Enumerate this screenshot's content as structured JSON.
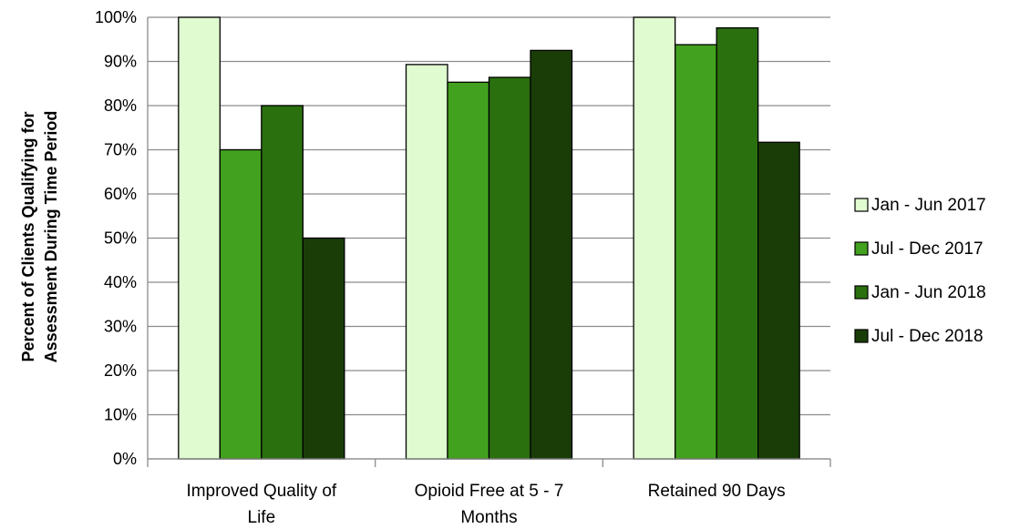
{
  "chart_data": {
    "type": "bar",
    "categories": [
      "Improved Quality of Life",
      "Opioid Free at 5 - 7 Months",
      "Retained 90 Days"
    ],
    "category_lines": [
      [
        "Improved Quality of",
        "Life"
      ],
      [
        "Opioid Free at 5 - 7",
        "Months"
      ],
      [
        "Retained 90 Days"
      ]
    ],
    "series": [
      {
        "name": "Jan - Jun 2017",
        "values": [
          100,
          89.3,
          100
        ]
      },
      {
        "name": "Jul - Dec 2017",
        "values": [
          70,
          85.3,
          93.8
        ]
      },
      {
        "name": "Jan - Jun 2018",
        "values": [
          80,
          86.4,
          97.6
        ]
      },
      {
        "name": "Jul - Dec 2018",
        "values": [
          50,
          92.5,
          71.7
        ]
      }
    ],
    "ylabel_lines": [
      "Percent of Clients Qualifying for",
      "Assessment During Time Period"
    ],
    "ylim": [
      0,
      100
    ],
    "yticks": [
      0,
      10,
      20,
      30,
      40,
      50,
      60,
      70,
      80,
      90,
      100
    ],
    "ytick_labels": [
      "0%",
      "10%",
      "20%",
      "30%",
      "40%",
      "50%",
      "60%",
      "70%",
      "80%",
      "90%",
      "100%"
    ],
    "grid": true,
    "legend_position": "right",
    "colors": [
      "#e0fbd0",
      "#42a11e",
      "#2b700f",
      "#1a3d08"
    ]
  }
}
